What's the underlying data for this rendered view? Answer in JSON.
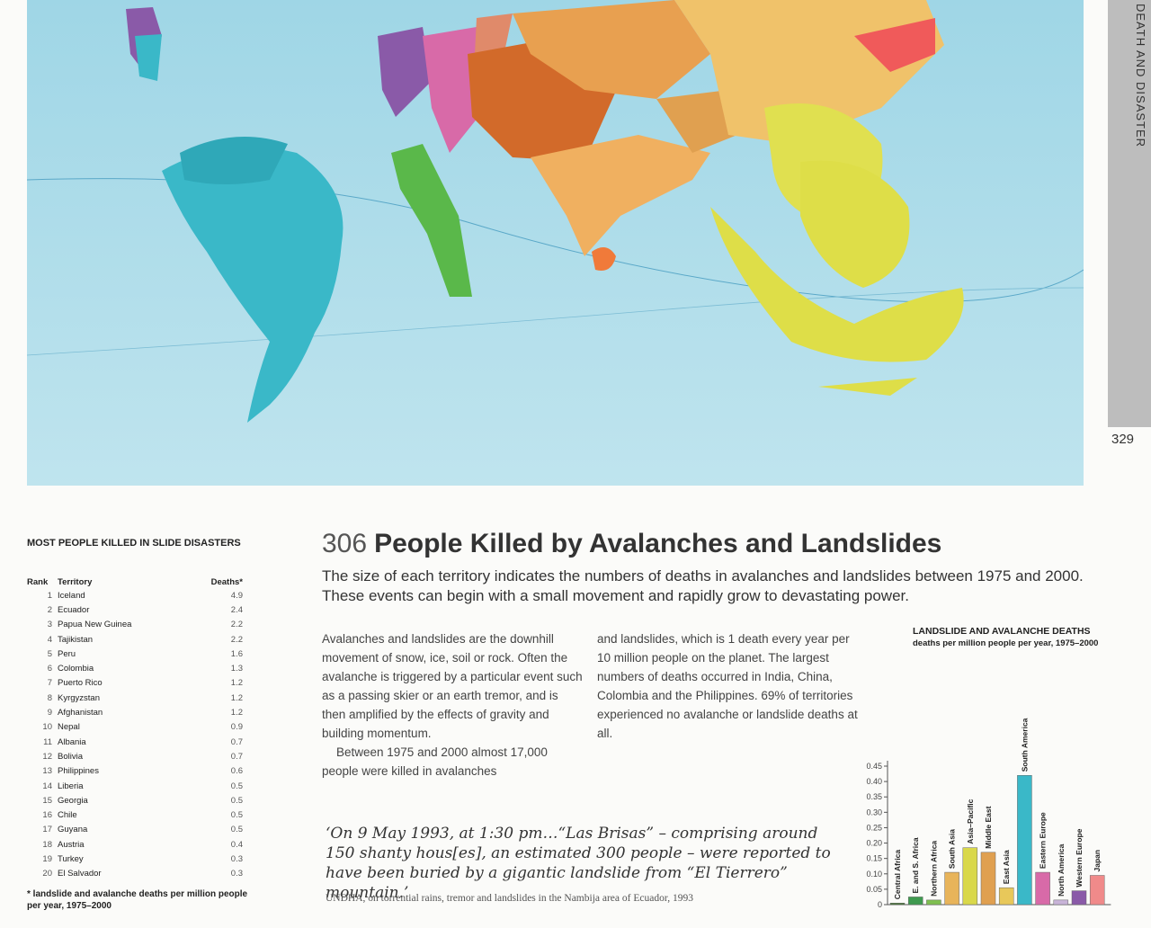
{
  "page": {
    "section_label": "DEATH AND DISASTER",
    "page_number": "329",
    "map_number": "306",
    "title": "People Killed by Avalanches and Landslides",
    "subtitle": "The size of each territory indicates the numbers of deaths in avalanches and landslides between 1975 and 2000. These events can begin with a small movement and rapidly grow to devastating power."
  },
  "body": {
    "col1_p1": "Avalanches and landslides are the downhill movement of snow, ice, soil or rock. Often the avalanche is triggered by a particular event such as a passing skier or an earth tremor, and is then amplified by the effects of gravity and building momentum.",
    "col1_p2": "Between 1975 and 2000 almost 17,000 people were killed in avalanches",
    "col2_p1": "and landslides, which is 1 death every year per 10 million people on the planet. The largest numbers of deaths occurred in India, China, Colombia and the Philippines. 69% of territories experienced no avalanche or landslide deaths at all."
  },
  "quote": {
    "text": "‘On 9 May 1993, at 1:30 pm…“Las Brisas” – comprising around 150 shanty hous[es], an estimated 300 people – were reported to have been buried by a gigantic landslide from “El Tierrero” mountain.’",
    "source": "UNDHA, on torrential rains, tremor and landslides in the Nambija area of Ecuador, 1993"
  },
  "ranking": {
    "title": "MOST PEOPLE KILLED IN SLIDE DISASTERS",
    "col_rank": "Rank",
    "col_territory": "Territory",
    "col_deaths": "Deaths*",
    "rows": [
      {
        "rank": "1",
        "territory": "Iceland",
        "deaths": "4.9"
      },
      {
        "rank": "2",
        "territory": "Ecuador",
        "deaths": "2.4"
      },
      {
        "rank": "3",
        "territory": "Papua New Guinea",
        "deaths": "2.2"
      },
      {
        "rank": "4",
        "territory": "Tajikistan",
        "deaths": "2.2"
      },
      {
        "rank": "5",
        "territory": "Peru",
        "deaths": "1.6"
      },
      {
        "rank": "6",
        "territory": "Colombia",
        "deaths": "1.3"
      },
      {
        "rank": "7",
        "territory": "Puerto Rico",
        "deaths": "1.2"
      },
      {
        "rank": "8",
        "territory": "Kyrgyzstan",
        "deaths": "1.2"
      },
      {
        "rank": "9",
        "territory": "Afghanistan",
        "deaths": "1.2"
      },
      {
        "rank": "10",
        "territory": "Nepal",
        "deaths": "0.9"
      },
      {
        "rank": "11",
        "territory": "Albania",
        "deaths": "0.7"
      },
      {
        "rank": "12",
        "territory": "Bolivia",
        "deaths": "0.7"
      },
      {
        "rank": "13",
        "territory": "Philippines",
        "deaths": "0.6"
      },
      {
        "rank": "14",
        "territory": "Liberia",
        "deaths": "0.5"
      },
      {
        "rank": "15",
        "territory": "Georgia",
        "deaths": "0.5"
      },
      {
        "rank": "16",
        "territory": "Chile",
        "deaths": "0.5"
      },
      {
        "rank": "17",
        "territory": "Guyana",
        "deaths": "0.5"
      },
      {
        "rank": "18",
        "territory": "Austria",
        "deaths": "0.4"
      },
      {
        "rank": "19",
        "territory": "Turkey",
        "deaths": "0.3"
      },
      {
        "rank": "20",
        "territory": "El Salvador",
        "deaths": "0.3"
      }
    ],
    "footnote": "* landslide and avalanche deaths per million people per year, 1975–2000"
  },
  "chart_data": {
    "type": "bar",
    "title": "LANDSLIDE AND AVALANCHE DEATHS",
    "subtitle": "deaths per million people per year, 1975–2000",
    "categories": [
      "Central Africa",
      "E. and S. Africa",
      "Northern Africa",
      "South Asia",
      "Asia–Pacific",
      "Middle East",
      "East Asia",
      "South America",
      "Eastern Europe",
      "North America",
      "Western Europe",
      "Japan"
    ],
    "values": [
      0.005,
      0.025,
      0.015,
      0.105,
      0.185,
      0.17,
      0.055,
      0.42,
      0.105,
      0.015,
      0.045,
      0.095
    ],
    "colors": [
      "#4a7a3a",
      "#3f9a4f",
      "#7fbf50",
      "#e8b45a",
      "#d9d84a",
      "#e0a050",
      "#e8c85a",
      "#3ab8c8",
      "#d86aa8",
      "#c8b4d8",
      "#8a5aa8",
      "#f08a8a"
    ],
    "yticks": [
      "0",
      "0.05",
      "0.10",
      "0.15",
      "0.20",
      "0.25",
      "0.30",
      "0.35",
      "0.40",
      "0.45"
    ],
    "ylim": [
      0,
      0.45
    ]
  }
}
